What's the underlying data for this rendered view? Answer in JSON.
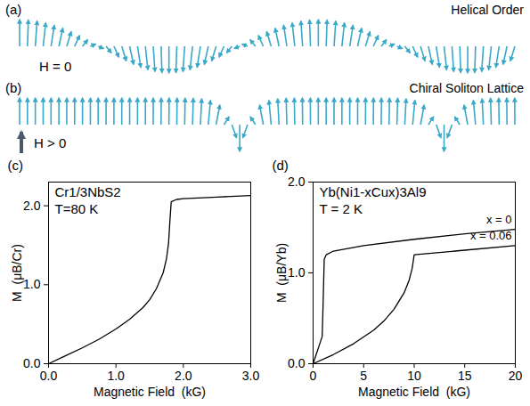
{
  "diagrams": [
    {
      "panel_label": "(a)",
      "title": "Helical Order",
      "field": "H = 0"
    },
    {
      "panel_label": "(b)",
      "title": "Chiral Soliton Lattice",
      "field": "H > 0"
    }
  ],
  "chart_data": [
    {
      "type": "line",
      "panel_label": "(c)",
      "annotations": [
        "Cr1/3NbS2",
        "T=80 K"
      ],
      "xlabel": "Magnetic Field  (kG)",
      "ylabel": "M  (μB/Cr)",
      "xlim": [
        0,
        3
      ],
      "xticks": [
        0,
        1,
        2,
        3
      ],
      "ylim": [
        0,
        2.3
      ],
      "yticks": [
        0,
        1,
        2
      ],
      "series": [
        {
          "color": "#000000",
          "x": [
            0,
            0.25,
            0.5,
            0.75,
            1,
            1.2,
            1.4,
            1.5,
            1.6,
            1.7,
            1.75,
            1.78,
            1.8,
            1.82,
            1.9,
            2,
            2.5,
            3
          ],
          "values": [
            0,
            0.1,
            0.2,
            0.31,
            0.44,
            0.56,
            0.71,
            0.81,
            0.95,
            1.15,
            1.33,
            1.52,
            1.8,
            2.05,
            2.08,
            2.09,
            2.11,
            2.13
          ]
        }
      ]
    },
    {
      "type": "line",
      "panel_label": "(d)",
      "annotations": [
        "Yb(Ni1-xCux)3Al9",
        "T = 2 K"
      ],
      "xlabel": "Magnetic Field  (kG)",
      "ylabel": "M  (μB/Yb)",
      "xlim": [
        0,
        20
      ],
      "xticks": [
        0,
        5,
        10,
        15,
        20
      ],
      "ylim": [
        0,
        2
      ],
      "yticks": [
        0,
        1,
        2
      ],
      "series": [
        {
          "name": "x = 0",
          "color": "#000000",
          "x": [
            0,
            0.3,
            0.6,
            0.9,
            1.0,
            1.1,
            1.3,
            2,
            5,
            10,
            15,
            20
          ],
          "values": [
            0,
            0.1,
            0.2,
            0.3,
            0.7,
            1.15,
            1.2,
            1.24,
            1.3,
            1.37,
            1.43,
            1.48
          ]
        },
        {
          "name": "x = 0.06",
          "color": "#000000",
          "x": [
            0,
            2,
            4,
            6,
            7,
            8,
            9,
            9.5,
            9.8,
            10,
            11,
            15,
            20
          ],
          "values": [
            0,
            0.1,
            0.22,
            0.37,
            0.47,
            0.6,
            0.78,
            0.92,
            1.05,
            1.2,
            1.21,
            1.25,
            1.3
          ]
        }
      ]
    }
  ]
}
